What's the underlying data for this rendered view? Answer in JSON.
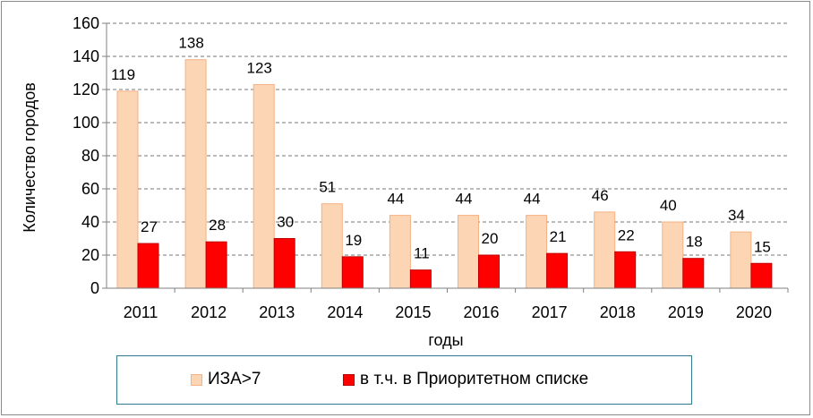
{
  "chart_data": {
    "type": "bar",
    "categories": [
      "2011",
      "2012",
      "2013",
      "2014",
      "2015",
      "2016",
      "2017",
      "2018",
      "2019",
      "2020"
    ],
    "series": [
      {
        "name": "ИЗА>7",
        "values": [
          119,
          138,
          123,
          51,
          44,
          44,
          44,
          46,
          40,
          34
        ],
        "color": "#fcd5b4",
        "stroke": "#f4b183"
      },
      {
        "name": "в т.ч. в Приоритетном списке",
        "values": [
          27,
          28,
          30,
          19,
          11,
          20,
          21,
          22,
          18,
          15
        ],
        "color": "#ff0000",
        "stroke": "#c00000"
      }
    ],
    "xlabel": "годы",
    "ylabel": "Количество городов",
    "ylim": [
      0,
      160
    ],
    "yticks": [
      0,
      20,
      40,
      60,
      80,
      100,
      120,
      140,
      160
    ],
    "grid": true,
    "legend_position": "bottom"
  }
}
